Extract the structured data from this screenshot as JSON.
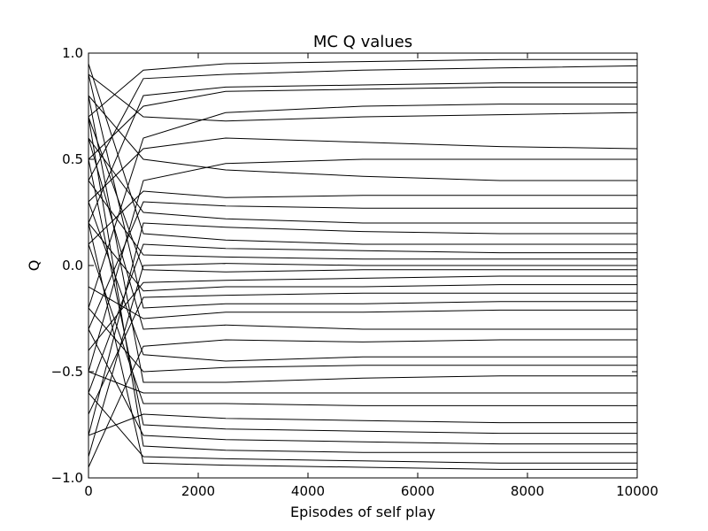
{
  "chart_data": {
    "type": "line",
    "title": "MC Q values",
    "xlabel": "Episodes of self play",
    "ylabel": "Q",
    "xlim": [
      0,
      10000
    ],
    "ylim": [
      -1.0,
      1.0
    ],
    "x_ticks": [
      0,
      2000,
      4000,
      6000,
      8000,
      10000
    ],
    "x_tick_labels": [
      "0",
      "2000",
      "4000",
      "6000",
      "8000",
      "10000"
    ],
    "y_ticks": [
      -1.0,
      -0.5,
      0.0,
      0.5,
      1.0
    ],
    "y_tick_labels": [
      "−1.0",
      "−0.5",
      "0.0",
      "0.5",
      "1.0"
    ],
    "grid": false,
    "line_color": "#000000",
    "series": [
      {
        "x": [
          0,
          1000,
          2500,
          5000,
          7500,
          10000
        ],
        "y": [
          0.7,
          0.92,
          0.95,
          0.96,
          0.97,
          0.97
        ]
      },
      {
        "x": [
          0,
          1000,
          2500,
          5000,
          7500,
          10000
        ],
        "y": [
          0.4,
          0.88,
          0.9,
          0.92,
          0.93,
          0.94
        ]
      },
      {
        "x": [
          0,
          1000,
          2500,
          5000,
          7500,
          10000
        ],
        "y": [
          0.2,
          0.8,
          0.84,
          0.85,
          0.86,
          0.86
        ]
      },
      {
        "x": [
          0,
          1000,
          2500,
          5000,
          7500,
          10000
        ],
        "y": [
          0.5,
          0.75,
          0.82,
          0.83,
          0.84,
          0.84
        ]
      },
      {
        "x": [
          0,
          1000,
          2500,
          5000,
          7500,
          10000
        ],
        "y": [
          -0.2,
          0.6,
          0.72,
          0.75,
          0.76,
          0.76
        ]
      },
      {
        "x": [
          0,
          1000,
          2500,
          5000,
          7500,
          10000
        ],
        "y": [
          0.9,
          0.7,
          0.68,
          0.7,
          0.71,
          0.72
        ]
      },
      {
        "x": [
          0,
          1000,
          2500,
          5000,
          7500,
          10000
        ],
        "y": [
          0.3,
          0.55,
          0.6,
          0.58,
          0.56,
          0.55
        ]
      },
      {
        "x": [
          0,
          1000,
          2500,
          5000,
          7500,
          10000
        ],
        "y": [
          -0.5,
          0.4,
          0.48,
          0.5,
          0.5,
          0.5
        ]
      },
      {
        "x": [
          0,
          1000,
          2500,
          5000,
          7500,
          10000
        ],
        "y": [
          0.8,
          0.5,
          0.45,
          0.42,
          0.4,
          0.4
        ]
      },
      {
        "x": [
          0,
          1000,
          2500,
          5000,
          7500,
          10000
        ],
        "y": [
          0.1,
          0.35,
          0.32,
          0.33,
          0.33,
          0.33
        ]
      },
      {
        "x": [
          0,
          1000,
          2500,
          5000,
          7500,
          10000
        ],
        "y": [
          -0.3,
          0.3,
          0.28,
          0.27,
          0.27,
          0.27
        ]
      },
      {
        "x": [
          0,
          1000,
          2500,
          5000,
          7500,
          10000
        ],
        "y": [
          0.6,
          0.25,
          0.22,
          0.2,
          0.2,
          0.2
        ]
      },
      {
        "x": [
          0,
          1000,
          2500,
          5000,
          7500,
          10000
        ],
        "y": [
          -0.8,
          0.2,
          0.18,
          0.16,
          0.15,
          0.15
        ]
      },
      {
        "x": [
          0,
          1000,
          2500,
          5000,
          7500,
          10000
        ],
        "y": [
          0.95,
          0.15,
          0.12,
          0.1,
          0.1,
          0.1
        ]
      },
      {
        "x": [
          0,
          1000,
          2500,
          5000,
          7500,
          10000
        ],
        "y": [
          -0.6,
          0.1,
          0.08,
          0.07,
          0.06,
          0.06
        ]
      },
      {
        "x": [
          0,
          1000,
          2500,
          5000,
          7500,
          10000
        ],
        "y": [
          0.4,
          0.05,
          0.04,
          0.03,
          0.03,
          0.03
        ]
      },
      {
        "x": [
          0,
          1000,
          2500,
          5000,
          7500,
          10000
        ],
        "y": [
          -0.9,
          0.0,
          0.01,
          0.0,
          0.0,
          0.0
        ]
      },
      {
        "x": [
          0,
          1000,
          2500,
          5000,
          7500,
          10000
        ],
        "y": [
          0.7,
          -0.02,
          -0.03,
          -0.02,
          -0.02,
          -0.02
        ]
      },
      {
        "x": [
          0,
          1000,
          2500,
          5000,
          7500,
          10000
        ],
        "y": [
          -0.4,
          -0.08,
          -0.07,
          -0.06,
          -0.05,
          -0.05
        ]
      },
      {
        "x": [
          0,
          1000,
          2500,
          5000,
          7500,
          10000
        ],
        "y": [
          0.2,
          -0.12,
          -0.1,
          -0.1,
          -0.09,
          -0.09
        ]
      },
      {
        "x": [
          0,
          1000,
          2500,
          5000,
          7500,
          10000
        ],
        "y": [
          -0.7,
          -0.15,
          -0.14,
          -0.13,
          -0.13,
          -0.13
        ]
      },
      {
        "x": [
          0,
          1000,
          2500,
          5000,
          7500,
          10000
        ],
        "y": [
          0.9,
          -0.2,
          -0.18,
          -0.18,
          -0.17,
          -0.17
        ]
      },
      {
        "x": [
          0,
          1000,
          2500,
          5000,
          7500,
          10000
        ],
        "y": [
          -0.1,
          -0.25,
          -0.22,
          -0.22,
          -0.21,
          -0.21
        ]
      },
      {
        "x": [
          0,
          1000,
          2500,
          5000,
          7500,
          10000
        ],
        "y": [
          0.6,
          -0.3,
          -0.28,
          -0.3,
          -0.3,
          -0.3
        ]
      },
      {
        "x": [
          0,
          1000,
          2500,
          5000,
          7500,
          10000
        ],
        "y": [
          -0.95,
          -0.38,
          -0.35,
          -0.36,
          -0.35,
          -0.35
        ]
      },
      {
        "x": [
          0,
          1000,
          2500,
          5000,
          7500,
          10000
        ],
        "y": [
          0.3,
          -0.42,
          -0.45,
          -0.43,
          -0.43,
          -0.43
        ]
      },
      {
        "x": [
          0,
          1000,
          2500,
          5000,
          7500,
          10000
        ],
        "y": [
          -0.2,
          -0.5,
          -0.48,
          -0.47,
          -0.47,
          -0.47
        ]
      },
      {
        "x": [
          0,
          1000,
          2500,
          5000,
          7500,
          10000
        ],
        "y": [
          0.8,
          -0.55,
          -0.55,
          -0.53,
          -0.52,
          -0.52
        ]
      },
      {
        "x": [
          0,
          1000,
          2500,
          5000,
          7500,
          10000
        ],
        "y": [
          -0.5,
          -0.6,
          -0.6,
          -0.6,
          -0.6,
          -0.6
        ]
      },
      {
        "x": [
          0,
          1000,
          2500,
          5000,
          7500,
          10000
        ],
        "y": [
          0.1,
          -0.65,
          -0.65,
          -0.66,
          -0.66,
          -0.66
        ]
      },
      {
        "x": [
          0,
          1000,
          2500,
          5000,
          7500,
          10000
        ],
        "y": [
          -0.8,
          -0.7,
          -0.72,
          -0.73,
          -0.74,
          -0.74
        ]
      },
      {
        "x": [
          0,
          1000,
          2500,
          5000,
          7500,
          10000
        ],
        "y": [
          0.5,
          -0.75,
          -0.77,
          -0.78,
          -0.79,
          -0.79
        ]
      },
      {
        "x": [
          0,
          1000,
          2500,
          5000,
          7500,
          10000
        ],
        "y": [
          -0.3,
          -0.8,
          -0.82,
          -0.83,
          -0.84,
          -0.84
        ]
      },
      {
        "x": [
          0,
          1000,
          2500,
          5000,
          7500,
          10000
        ],
        "y": [
          0.7,
          -0.85,
          -0.87,
          -0.88,
          -0.88,
          -0.88
        ]
      },
      {
        "x": [
          0,
          1000,
          2500,
          5000,
          7500,
          10000
        ],
        "y": [
          -0.6,
          -0.9,
          -0.91,
          -0.92,
          -0.93,
          -0.93
        ]
      },
      {
        "x": [
          0,
          1000,
          2500,
          5000,
          7500,
          10000
        ],
        "y": [
          0.2,
          -0.93,
          -0.94,
          -0.95,
          -0.96,
          -0.96
        ]
      }
    ]
  }
}
